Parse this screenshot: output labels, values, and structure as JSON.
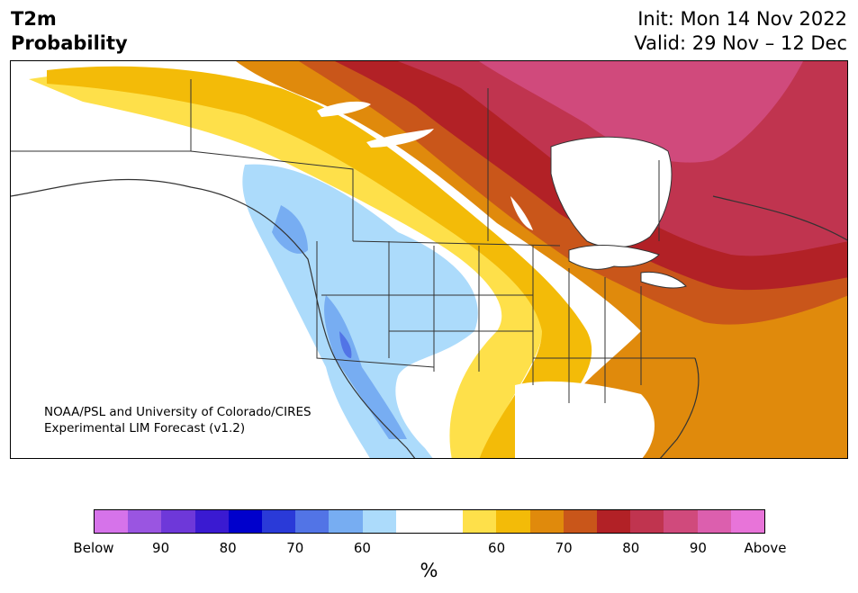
{
  "title": {
    "left_line1": "T2m",
    "left_line2": "Probability",
    "right_line1": "Init: Mon 14 Nov 2022",
    "right_line2": "Valid: 29 Nov – 12 Dec"
  },
  "credit": {
    "line1": "NOAA/PSL and University of Colorado/CIRES",
    "line2": "Experimental LIM Forecast (v1.2)"
  },
  "colorbar": {
    "colors": [
      "#d673ea",
      "#9a55e1",
      "#6e38d9",
      "#3a1ad1",
      "#0000cc",
      "#2a3ad8",
      "#5274e6",
      "#77adf2",
      "#acdbfb",
      "#ffffff",
      "#ffffff",
      "#fee04a",
      "#f3bb08",
      "#e08a0c",
      "#c9561a",
      "#b22126",
      "#c0344f",
      "#d04a7c",
      "#dc5fae",
      "#e874d9"
    ],
    "tick_labels": [
      "Below",
      "90",
      "80",
      "70",
      "60",
      "60",
      "70",
      "80",
      "90",
      "Above"
    ],
    "unit": "%"
  },
  "map": {
    "legend_colors": {
      "below_60": "#acdbfb",
      "below_70": "#77adf2",
      "below_80": "#5274e6",
      "near_normal": "#ffffff",
      "above_60": "#fee04a",
      "above_60b": "#f3bb08",
      "above_70": "#e08a0c",
      "above_75": "#c9561a",
      "above_80": "#b22126",
      "above_85": "#c0344f",
      "above_90": "#d04a7c"
    }
  }
}
